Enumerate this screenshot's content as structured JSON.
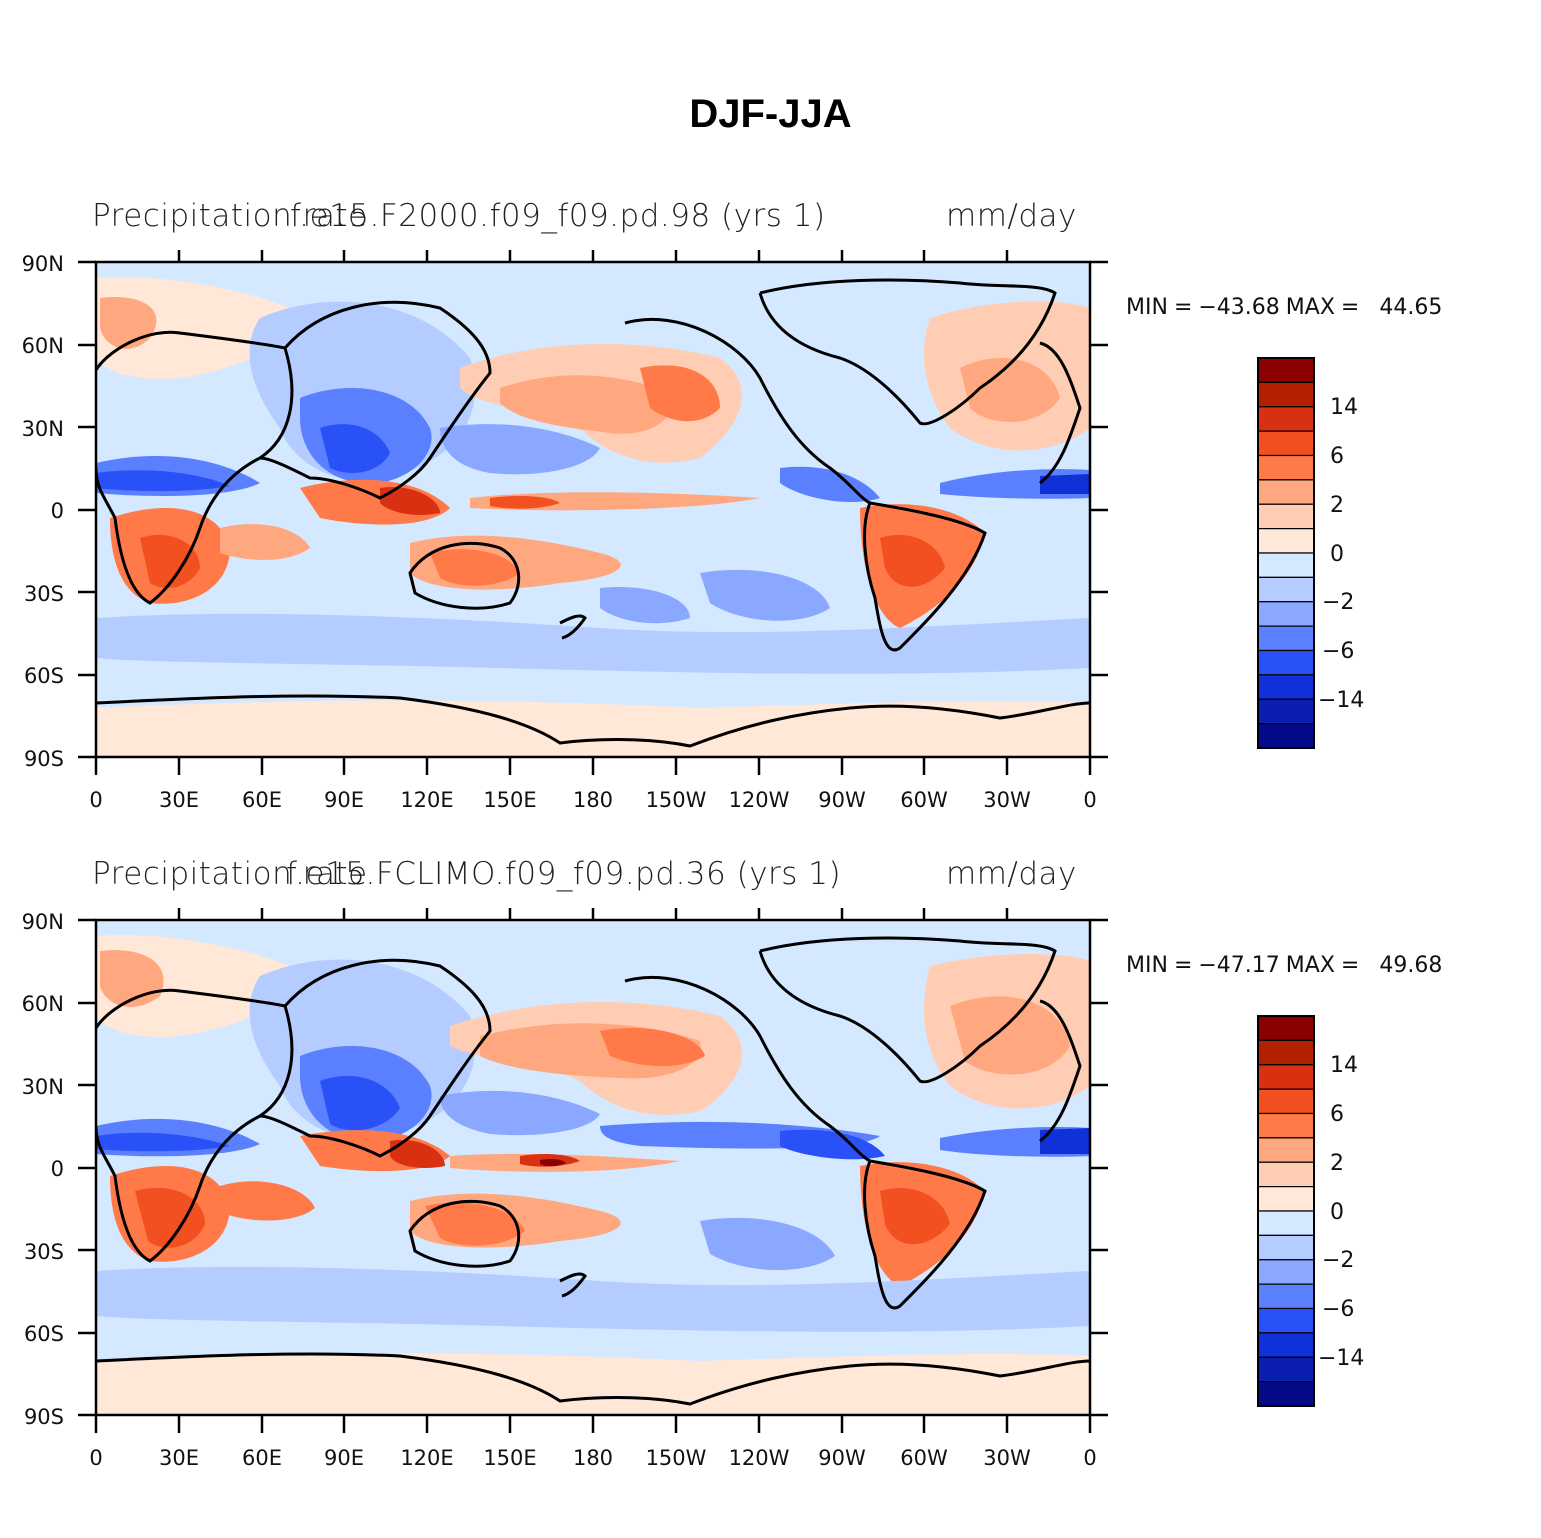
{
  "title": "DJF-JJA",
  "panels": [
    {
      "id": "top",
      "left_title": "Precipitation rate",
      "center_title": "f.e15.F2000.f09_f09.pd.98 (yrs  1)",
      "right_title": "mm/day",
      "min_label": "MIN",
      "min_eq": "=",
      "min_value": "−43.68",
      "max_label": "MAX",
      "max_eq": "=",
      "max_value": "44.65"
    },
    {
      "id": "bottom",
      "left_title": "Precipitation rate",
      "center_title": "f.e15.FCLIMO.f09_f09.pd.36 (yrs  1)",
      "right_title": "mm/day",
      "min_label": "MIN",
      "min_eq": "=",
      "min_value": "−47.17",
      "max_label": "MAX",
      "max_eq": "=",
      "max_value": "49.68"
    }
  ],
  "lat_labels": [
    "90N",
    "60N",
    "30N",
    "0",
    "30S",
    "60S",
    "90S"
  ],
  "lon_labels": [
    "0",
    "30E",
    "60E",
    "90E",
    "120E",
    "150E",
    "180",
    "150W",
    "120W",
    "90W",
    "60W",
    "30W",
    "0"
  ],
  "colorbar": {
    "colors": [
      "#8b0000",
      "#b22000",
      "#d83010",
      "#f25020",
      "#ff7a48",
      "#ffa880",
      "#ffcdb4",
      "#ffe8d8",
      "#d4e8ff",
      "#b4ccff",
      "#8aa8ff",
      "#5a80ff",
      "#2a50f8",
      "#1030d8",
      "#0a1eb0",
      "#050a88"
    ],
    "labels": [
      "14",
      "6",
      "2",
      "0",
      "−2",
      "−6",
      "−14"
    ]
  },
  "colors": {
    "background_field": "#d4e8ff",
    "positive_light": "#ffe8d8",
    "positive_mid": "#ffa880",
    "positive_strong": "#f25020",
    "negative_light": "#b4ccff",
    "negative_mid": "#5a80ff",
    "negative_strong": "#1030d8",
    "coastline": "#000000"
  }
}
